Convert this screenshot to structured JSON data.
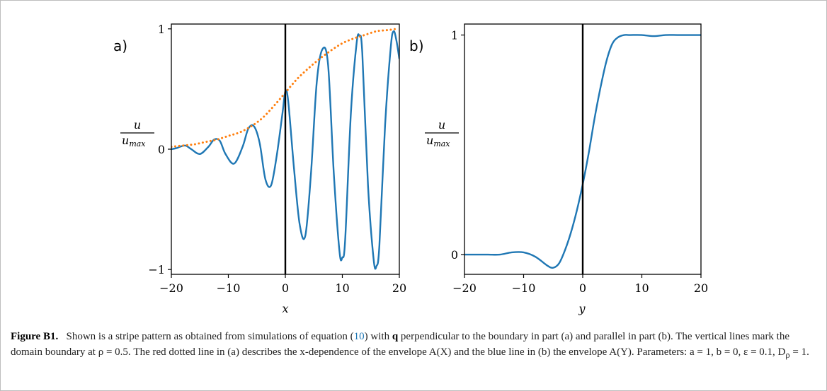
{
  "figure": {
    "caption_label": "Figure B1.",
    "caption_parts": {
      "p1": "Shown is a stripe pattern as obtained from simulations of equation (",
      "ref": "10",
      "p2": ") with ",
      "q": "q",
      "p3": " perpendicular to the boundary in part (a) and parallel in part (b). The vertical lines mark the domain boundary at ρ = 0.5. The red dotted line in (a) describes the x-dependence of the envelope A(X) and the blue line in (b) the envelope A(Y). Parameters: a = 1, b = 0, ε = 0.1, D",
      "sub": "ρ",
      "p4": " = 1."
    }
  },
  "chart_data": [
    {
      "type": "line",
      "panel_label": "a)",
      "xlabel": "x",
      "ylabel_num": "u",
      "ylabel_den": "u_max",
      "xlim": [
        -20,
        20
      ],
      "ylim": [
        -1.04,
        1.04
      ],
      "xticks": [
        -20,
        -10,
        0,
        10,
        20
      ],
      "xtick_labels": [
        "−20",
        "−10",
        "0",
        "10",
        "20"
      ],
      "yticks": [
        -1,
        0,
        1
      ],
      "ytick_labels": [
        "−1",
        "0",
        "1"
      ],
      "vline_x": 0,
      "series": [
        {
          "style": "solid",
          "color": "#1f77b4",
          "x": [
            -20,
            -19,
            -18.5,
            -17.5,
            -16.5,
            -15,
            -13.5,
            -12.5,
            -11.5,
            -10.5,
            -9,
            -7.5,
            -6.5,
            -5.5,
            -4.5,
            -3.5,
            -2.5,
            -1.5,
            -0.5,
            0,
            0.5,
            1.5,
            2.5,
            3.5,
            4.5,
            5.5,
            6.5,
            7.5,
            8.5,
            9.5,
            10,
            10.5,
            11.5,
            12.5,
            13,
            13.5,
            14.5,
            15.5,
            16,
            16.5,
            17.5,
            18.5,
            19,
            19.5,
            20
          ],
          "y": [
            0.0,
            0.01,
            0.02,
            0.03,
            0.0,
            -0.04,
            0.02,
            0.08,
            0.07,
            -0.04,
            -0.12,
            0.02,
            0.17,
            0.19,
            0.05,
            -0.25,
            -0.3,
            -0.05,
            0.3,
            0.48,
            0.4,
            -0.15,
            -0.62,
            -0.72,
            -0.2,
            0.55,
            0.83,
            0.7,
            -0.2,
            -0.85,
            -0.9,
            -0.75,
            0.3,
            0.88,
            0.94,
            0.8,
            -0.3,
            -0.92,
            -0.97,
            -0.8,
            0.2,
            0.85,
            0.98,
            0.9,
            0.75
          ]
        },
        {
          "style": "dotted",
          "color": "#ff7f0e",
          "x": [
            -20,
            -18,
            -16,
            -14,
            -12,
            -10,
            -8,
            -6,
            -4,
            -2,
            0,
            2,
            4,
            6,
            8,
            10,
            12,
            14,
            16,
            18,
            19.5
          ],
          "y": [
            0.02,
            0.03,
            0.04,
            0.06,
            0.08,
            0.11,
            0.14,
            0.19,
            0.26,
            0.36,
            0.47,
            0.58,
            0.67,
            0.75,
            0.82,
            0.88,
            0.92,
            0.95,
            0.98,
            0.99,
            1.0
          ]
        }
      ]
    },
    {
      "type": "line",
      "panel_label": "b)",
      "xlabel": "y",
      "ylabel_num": "u",
      "ylabel_den": "u_max",
      "xlim": [
        -20,
        20
      ],
      "ylim": [
        -0.09,
        1.05
      ],
      "xticks": [
        -20,
        -10,
        0,
        10,
        20
      ],
      "xtick_labels": [
        "−20",
        "−10",
        "0",
        "10",
        "20"
      ],
      "yticks": [
        0,
        1
      ],
      "ytick_labels": [
        "0",
        "1"
      ],
      "vline_x": 0,
      "series": [
        {
          "style": "solid",
          "color": "#1f77b4",
          "x": [
            -20,
            -18,
            -16,
            -14,
            -12,
            -10,
            -8,
            -6,
            -5,
            -4,
            -3,
            -2,
            -1,
            0,
            1,
            2,
            3,
            4,
            5,
            6,
            7,
            8,
            10,
            12,
            14,
            16,
            18,
            20
          ],
          "y": [
            0.0,
            0.0,
            0.0,
            0.0,
            0.01,
            0.01,
            -0.01,
            -0.05,
            -0.06,
            -0.04,
            0.02,
            0.1,
            0.2,
            0.32,
            0.46,
            0.62,
            0.76,
            0.88,
            0.96,
            0.99,
            1.0,
            1.0,
            1.0,
            0.995,
            1.0,
            1.0,
            1.0,
            1.0
          ]
        }
      ]
    }
  ]
}
